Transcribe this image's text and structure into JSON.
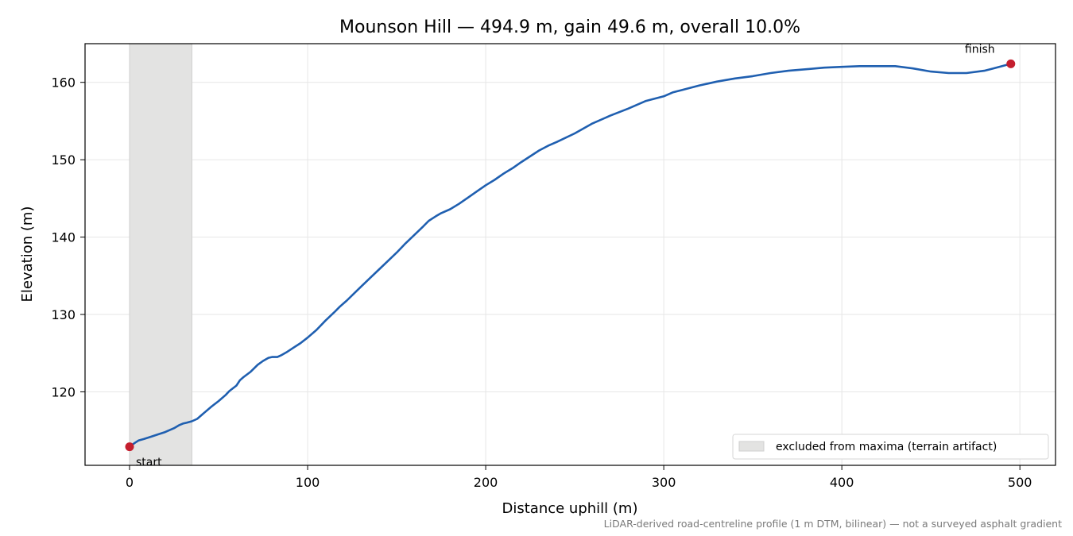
{
  "chart_data": {
    "type": "line",
    "title": "Mounson Hill — 494.9 m, gain 49.6 m, overall 10.0%",
    "xlabel": "Distance uphill (m)",
    "ylabel": "Elevation (m)",
    "xlim": [
      -25,
      520
    ],
    "ylim": [
      110.5,
      165
    ],
    "xticks": [
      0,
      100,
      200,
      300,
      400,
      500
    ],
    "yticks": [
      120,
      130,
      140,
      150,
      160
    ],
    "grid": true,
    "legend_position": "bottom-right",
    "series": [
      {
        "color": "#1f5fb0",
        "x": [
          0,
          3,
          5,
          8,
          12,
          16,
          20,
          25,
          28,
          30,
          32,
          35,
          38,
          42,
          46,
          50,
          54,
          56,
          60,
          62,
          64,
          68,
          72,
          75,
          78,
          80,
          83,
          85,
          88,
          92,
          96,
          100,
          105,
          110,
          115,
          118,
          122,
          126,
          130,
          135,
          140,
          145,
          150,
          155,
          160,
          165,
          168,
          170,
          172,
          175,
          180,
          185,
          190,
          195,
          200,
          205,
          210,
          215,
          220,
          230,
          235,
          240,
          250,
          260,
          270,
          280,
          290,
          300,
          305,
          310,
          320,
          330,
          340,
          350,
          360,
          370,
          380,
          390,
          400,
          410,
          420,
          430,
          440,
          450,
          460,
          470,
          480,
          485,
          490,
          494.9
        ],
        "y": [
          112.9,
          113.4,
          113.7,
          113.9,
          114.2,
          114.5,
          114.8,
          115.3,
          115.7,
          115.9,
          116.0,
          116.2,
          116.5,
          117.3,
          118.1,
          118.8,
          119.6,
          120.1,
          120.8,
          121.5,
          121.9,
          122.6,
          123.5,
          124.0,
          124.4,
          124.5,
          124.5,
          124.7,
          125.1,
          125.7,
          126.3,
          127.0,
          128.0,
          129.2,
          130.3,
          131.0,
          131.8,
          132.7,
          133.6,
          134.7,
          135.8,
          136.9,
          138.0,
          139.2,
          140.3,
          141.4,
          142.1,
          142.4,
          142.7,
          143.1,
          143.6,
          144.3,
          145.1,
          145.9,
          146.7,
          147.4,
          148.2,
          148.9,
          149.7,
          151.2,
          151.8,
          152.3,
          153.4,
          154.7,
          155.7,
          156.6,
          157.6,
          158.2,
          158.7,
          159.0,
          159.6,
          160.1,
          160.5,
          160.8,
          161.2,
          161.5,
          161.7,
          161.9,
          162.0,
          162.1,
          162.1,
          162.1,
          161.8,
          161.4,
          161.2,
          161.2,
          161.5,
          161.8,
          162.1,
          162.4
        ]
      }
    ],
    "markers": [
      {
        "x": 0,
        "y": 112.9,
        "label": "start",
        "color": "#c41e2e"
      },
      {
        "x": 494.9,
        "y": 162.4,
        "label": "finish",
        "color": "#c41e2e"
      }
    ],
    "excluded_span": {
      "x": [
        0,
        35
      ],
      "color": "#e3e3e2"
    },
    "legend": {
      "entries": [
        "excluded from maxima (terrain artifact)"
      ]
    },
    "footnote": "LiDAR-derived road-centreline profile (1 m DTM, bilinear) — not a surveyed asphalt gradient"
  }
}
